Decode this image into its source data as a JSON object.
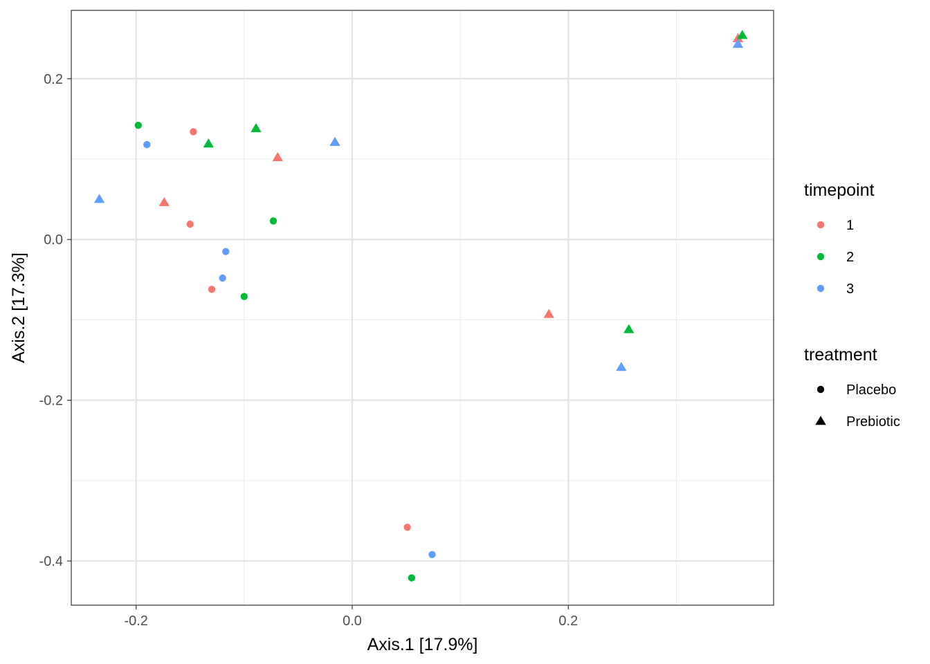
{
  "chart_data": {
    "type": "scatter",
    "xlabel": "Axis.1   [17.9%]",
    "ylabel": "Axis.2   [17.3%]",
    "xlim": [
      -0.26,
      0.39
    ],
    "ylim": [
      -0.455,
      0.285
    ],
    "x_ticks": [
      -0.2,
      0.0,
      0.2
    ],
    "y_ticks": [
      0.2,
      0.0,
      -0.2,
      -0.4
    ],
    "x_tick_labels": [
      "-0.2",
      "0.0",
      "0.2"
    ],
    "y_tick_labels": [
      "0.2",
      "0.0",
      "-0.2",
      "-0.4"
    ],
    "grid": true,
    "colors": {
      "1": "#F8766D",
      "2": "#00BA38",
      "3": "#619CFF"
    },
    "legend": {
      "placement": "right",
      "color_title": "timepoint",
      "color_entries": [
        {
          "label": "1",
          "color": "#F8766D"
        },
        {
          "label": "2",
          "color": "#00BA38"
        },
        {
          "label": "3",
          "color": "#619CFF"
        }
      ],
      "shape_title": "treatment",
      "shape_entries": [
        {
          "label": "Placebo",
          "shape": "circle"
        },
        {
          "label": "Prebiotic",
          "shape": "triangle"
        }
      ]
    },
    "points": [
      {
        "x": -0.198,
        "y": 0.142,
        "timepoint": "2",
        "treatment": "Placebo"
      },
      {
        "x": -0.147,
        "y": 0.134,
        "timepoint": "1",
        "treatment": "Placebo"
      },
      {
        "x": -0.19,
        "y": 0.118,
        "timepoint": "3",
        "treatment": "Placebo"
      },
      {
        "x": -0.15,
        "y": 0.019,
        "timepoint": "1",
        "treatment": "Placebo"
      },
      {
        "x": -0.073,
        "y": 0.023,
        "timepoint": "2",
        "treatment": "Placebo"
      },
      {
        "x": -0.117,
        "y": -0.015,
        "timepoint": "3",
        "treatment": "Placebo"
      },
      {
        "x": -0.12,
        "y": -0.048,
        "timepoint": "3",
        "treatment": "Placebo"
      },
      {
        "x": -0.13,
        "y": -0.062,
        "timepoint": "1",
        "treatment": "Placebo"
      },
      {
        "x": -0.1,
        "y": -0.071,
        "timepoint": "2",
        "treatment": "Placebo"
      },
      {
        "x": 0.051,
        "y": -0.358,
        "timepoint": "1",
        "treatment": "Placebo"
      },
      {
        "x": 0.074,
        "y": -0.392,
        "timepoint": "3",
        "treatment": "Placebo"
      },
      {
        "x": 0.055,
        "y": -0.421,
        "timepoint": "2",
        "treatment": "Placebo"
      },
      {
        "x": -0.089,
        "y": 0.138,
        "timepoint": "2",
        "treatment": "Prebiotic"
      },
      {
        "x": -0.133,
        "y": 0.119,
        "timepoint": "2",
        "treatment": "Prebiotic"
      },
      {
        "x": -0.069,
        "y": 0.102,
        "timepoint": "1",
        "treatment": "Prebiotic"
      },
      {
        "x": -0.016,
        "y": 0.121,
        "timepoint": "3",
        "treatment": "Prebiotic"
      },
      {
        "x": -0.234,
        "y": 0.05,
        "timepoint": "3",
        "treatment": "Prebiotic"
      },
      {
        "x": -0.174,
        "y": 0.046,
        "timepoint": "1",
        "treatment": "Prebiotic"
      },
      {
        "x": 0.182,
        "y": -0.093,
        "timepoint": "1",
        "treatment": "Prebiotic"
      },
      {
        "x": 0.256,
        "y": -0.112,
        "timepoint": "2",
        "treatment": "Prebiotic"
      },
      {
        "x": 0.249,
        "y": -0.159,
        "timepoint": "3",
        "treatment": "Prebiotic"
      },
      {
        "x": 0.357,
        "y": 0.25,
        "timepoint": "1",
        "treatment": "Prebiotic"
      },
      {
        "x": 0.361,
        "y": 0.254,
        "timepoint": "2",
        "treatment": "Prebiotic"
      },
      {
        "x": 0.357,
        "y": 0.243,
        "timepoint": "3",
        "treatment": "Prebiotic"
      }
    ]
  }
}
